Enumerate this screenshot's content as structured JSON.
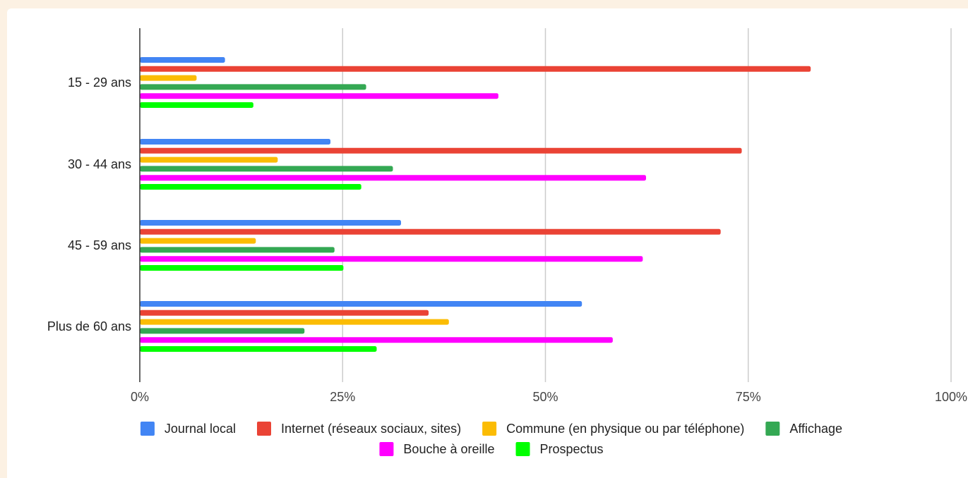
{
  "chart_data": {
    "type": "bar",
    "orientation": "horizontal",
    "categories": [
      "15 - 29 ans",
      "30 - 44 ans",
      "45 - 59 ans",
      "Plus de 60 ans"
    ],
    "series": [
      {
        "name": "Journal local",
        "color": "#4285f4",
        "values": [
          10.5,
          23.5,
          32.2,
          54.5
        ]
      },
      {
        "name": "Internet (réseaux sociaux, sites)",
        "color": "#ea4335",
        "values": [
          82.7,
          74.2,
          71.6,
          35.6
        ]
      },
      {
        "name": "Commune (en physique ou par téléphone)",
        "color": "#fbbc04",
        "values": [
          7.0,
          17.0,
          14.3,
          38.1
        ]
      },
      {
        "name": "Affichage",
        "color": "#34a853",
        "values": [
          27.9,
          31.2,
          24.0,
          20.3
        ]
      },
      {
        "name": "Bouche à oreille",
        "color": "#ff00ff",
        "values": [
          44.2,
          62.4,
          62.0,
          58.3
        ]
      },
      {
        "name": "Prospectus",
        "color": "#00ff00",
        "values": [
          14.0,
          27.3,
          25.1,
          29.2
        ]
      }
    ],
    "xlim": [
      0,
      100
    ],
    "xticks": [
      "0%",
      "25%",
      "50%",
      "75%",
      "100%"
    ],
    "grid": true,
    "legend_position": "bottom"
  }
}
